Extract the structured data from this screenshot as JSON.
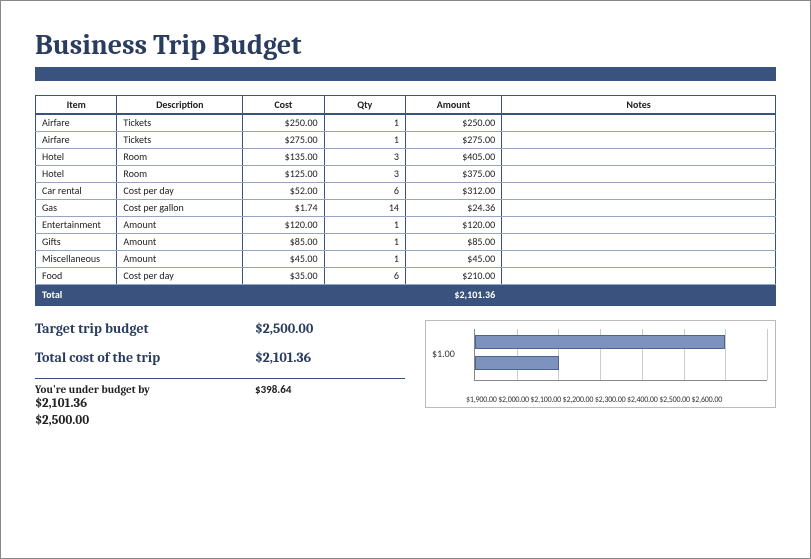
{
  "title": "Business Trip Budget",
  "table": {
    "columns": [
      "Item",
      "Description",
      "Cost",
      "Qty",
      "Amount",
      "Notes"
    ],
    "col_widths_pct": [
      11,
      17,
      11,
      11,
      13,
      37
    ],
    "col_align": [
      "left",
      "left",
      "right",
      "right",
      "right",
      "left"
    ],
    "rows": [
      [
        "Airfare",
        "Tickets",
        "$250.00",
        "1",
        "$250.00",
        ""
      ],
      [
        "Airfare",
        "Tickets",
        "$275.00",
        "1",
        "$275.00",
        ""
      ],
      [
        "Hotel",
        "Room",
        "$135.00",
        "3",
        "$405.00",
        ""
      ],
      [
        "Hotel",
        "Room",
        "$125.00",
        "3",
        "$375.00",
        ""
      ],
      [
        "Car rental",
        "Cost per day",
        "$52.00",
        "6",
        "$312.00",
        ""
      ],
      [
        "Gas",
        "Cost per gallon",
        "$1.74",
        "14",
        "$24.36",
        ""
      ],
      [
        "Entertainment",
        "Amount",
        "$120.00",
        "1",
        "$120.00",
        ""
      ],
      [
        "Gifts",
        "Amount",
        "$85.00",
        "1",
        "$85.00",
        ""
      ],
      [
        "Miscellaneous",
        "Amount",
        "$45.00",
        "1",
        "$45.00",
        ""
      ],
      [
        "Food",
        "Cost per day",
        "$35.00",
        "6",
        "$210.00",
        ""
      ]
    ],
    "total_label": "Total",
    "total_amount": "$2,101.36"
  },
  "summary": {
    "target_label": "Target trip budget",
    "target_value": "$2,500.00",
    "cost_label": "Total cost of the trip",
    "cost_value": "$2,101.36",
    "under_label": "You're under budget by",
    "under_value": "$398.64",
    "extra_value_1": "$2,101.36",
    "extra_value_2": "$2,500.00"
  },
  "chart": {
    "type": "horizontal-bar",
    "y_label": "$1.00",
    "x_min": 1900,
    "x_max": 2600,
    "x_tick_step": 100,
    "x_tick_labels": "$1,900.00 $2,000.00 $2,100.00 $2,200.00 $2,300.00 $2,400.00 $2,500.00 $2,600.00",
    "bars": [
      {
        "value": 2500.0,
        "top_pct": 12
      },
      {
        "value": 2101.36,
        "top_pct": 52
      }
    ],
    "bar_color": "#7d92bd",
    "bar_border": "#4c628f",
    "grid_color": "#cccccc",
    "axis_color": "#888888",
    "background_color": "#ffffff"
  },
  "colors": {
    "accent": "#3a537e",
    "title": "#2a3d5e",
    "row_border": "#95a5c4"
  }
}
